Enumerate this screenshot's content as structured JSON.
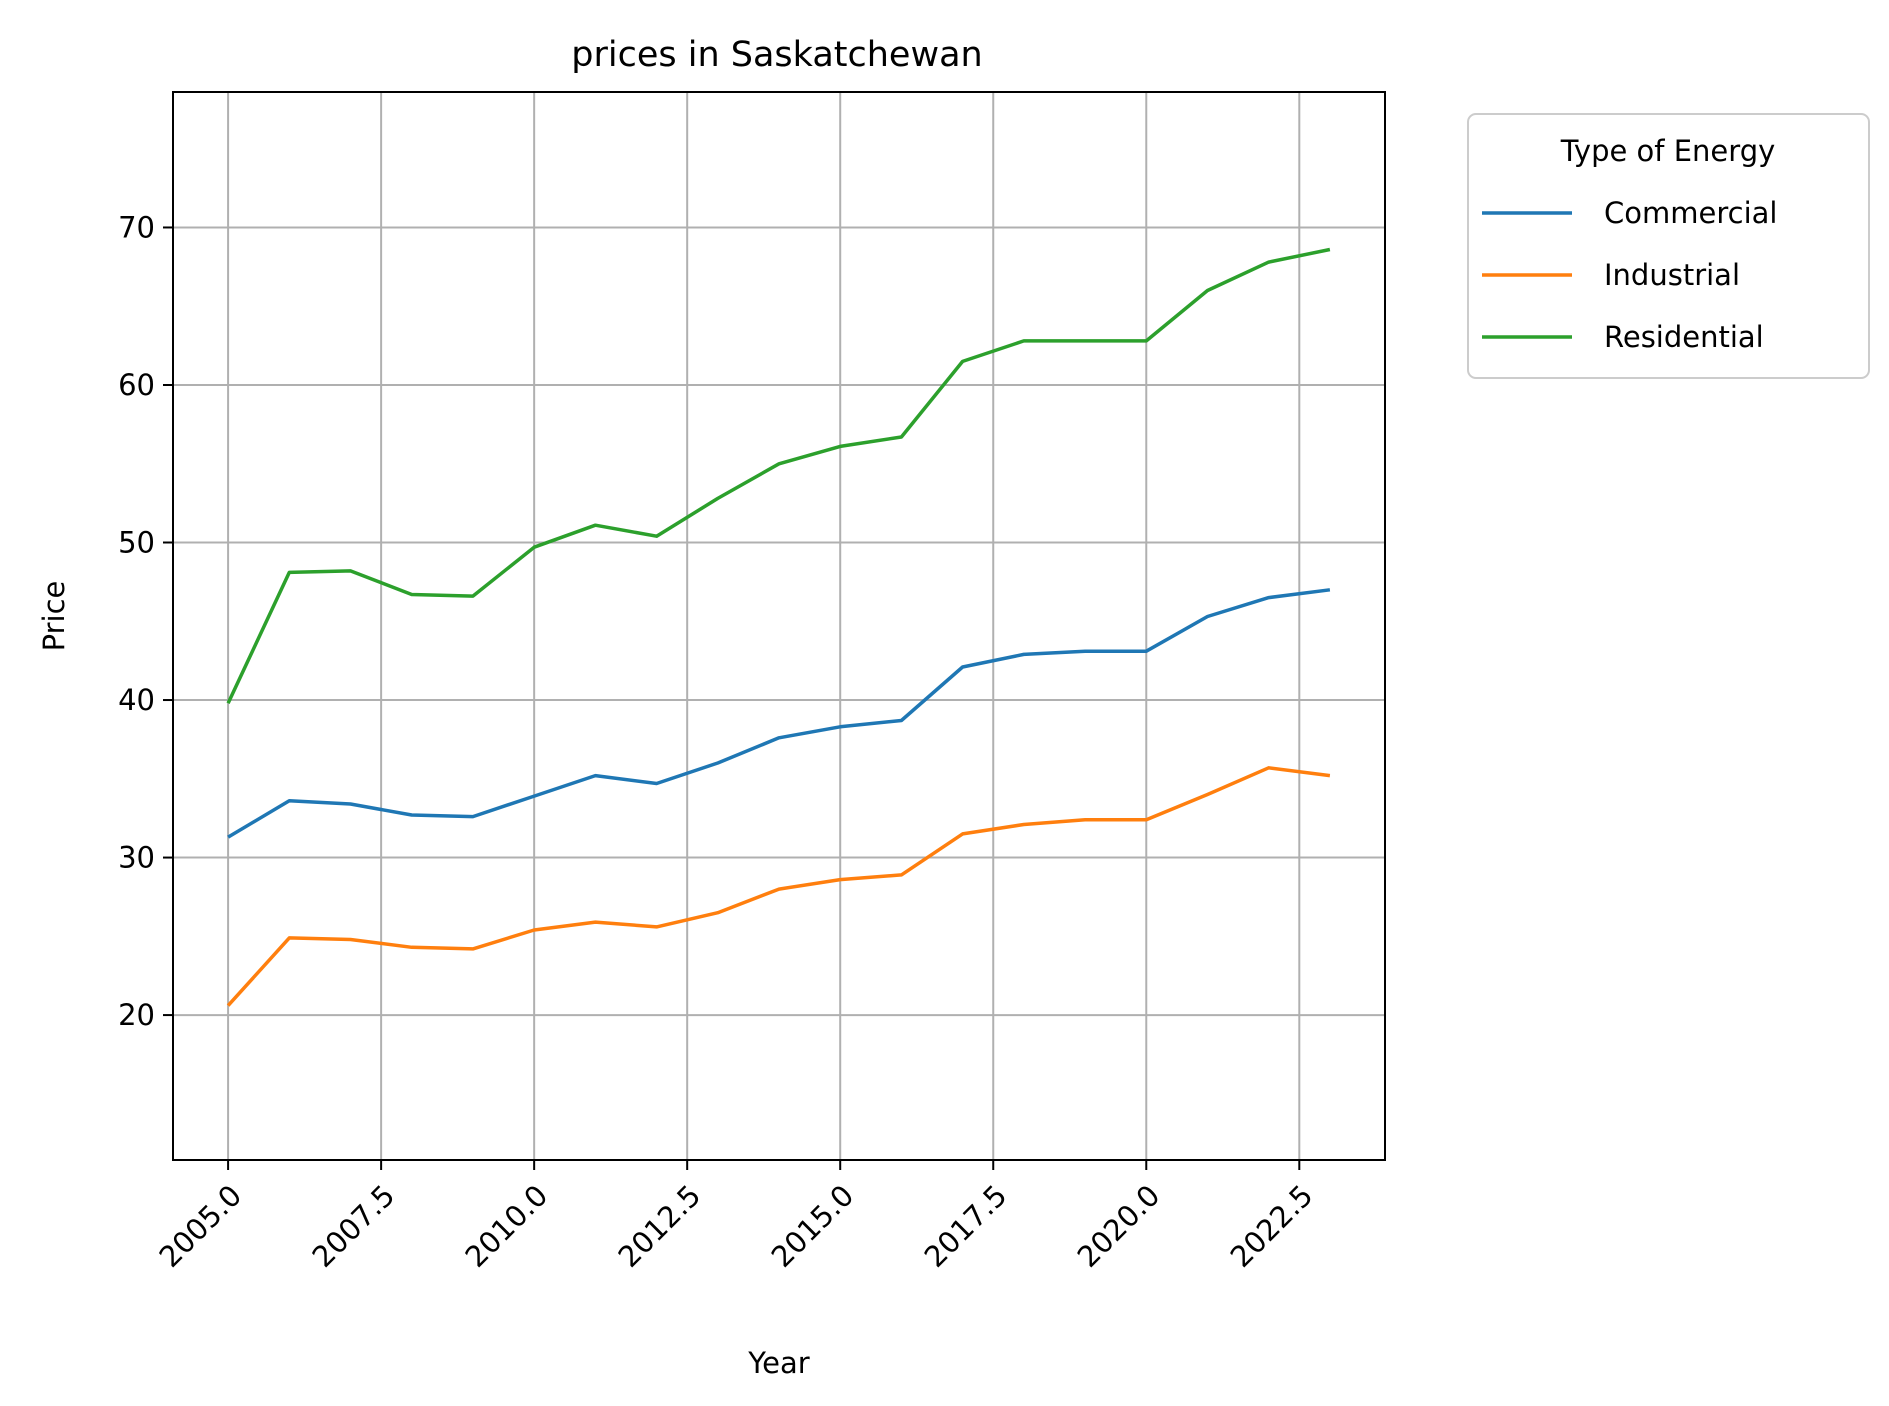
{
  "chart_data": {
    "type": "line",
    "title": "prices in Saskatchewan",
    "xlabel": "Year",
    "ylabel": "Price",
    "xlim": [
      2004.1,
      2023.9
    ],
    "ylim": [
      10.8,
      78.6
    ],
    "xticks": [
      2005.0,
      2007.5,
      2010.0,
      2012.5,
      2015.0,
      2017.5,
      2020.0,
      2022.5
    ],
    "xtick_labels": [
      "2005.0",
      "2007.5",
      "2010.0",
      "2012.5",
      "2015.0",
      "2017.5",
      "2020.0",
      "2022.5"
    ],
    "yticks": [
      20,
      30,
      40,
      50,
      60,
      70
    ],
    "ytick_labels": [
      "20",
      "30",
      "40",
      "50",
      "60",
      "70"
    ],
    "grid": true,
    "legend": {
      "title": "Type of Energy",
      "placement": "outside upper right"
    },
    "x": [
      2005,
      2006,
      2007,
      2008,
      2009,
      2010,
      2011,
      2012,
      2013,
      2014,
      2015,
      2016,
      2017,
      2018,
      2019,
      2020,
      2021,
      2022,
      2023
    ],
    "series": [
      {
        "name": "Commercial",
        "color": "#1f77b4",
        "values": [
          31.3,
          33.6,
          33.4,
          32.7,
          32.6,
          33.9,
          35.2,
          34.7,
          36.0,
          37.6,
          38.3,
          38.7,
          42.1,
          42.9,
          43.1,
          43.1,
          45.3,
          46.5,
          47.0
        ]
      },
      {
        "name": "Industrial",
        "color": "#ff7f0e",
        "values": [
          20.6,
          24.9,
          24.8,
          24.3,
          24.2,
          25.4,
          25.9,
          25.6,
          26.5,
          28.0,
          28.6,
          28.9,
          31.5,
          32.1,
          32.4,
          32.4,
          34.0,
          35.7,
          35.2
        ]
      },
      {
        "name": "Residential",
        "color": "#2ca02c",
        "values": [
          39.8,
          48.1,
          48.2,
          46.7,
          46.6,
          49.7,
          51.1,
          50.4,
          52.8,
          55.0,
          56.1,
          56.7,
          61.5,
          62.8,
          62.8,
          62.8,
          66.0,
          67.8,
          68.6
        ]
      }
    ]
  }
}
